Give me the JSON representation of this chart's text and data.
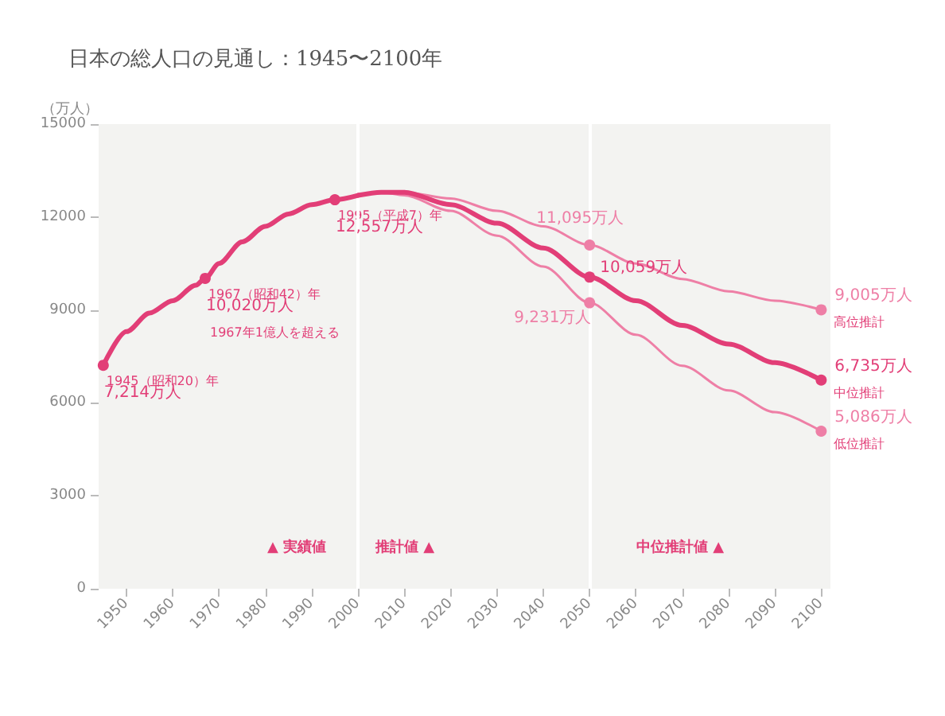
{
  "chart_data": {
    "type": "line",
    "title": "日本の総人口の見通し：1945〜2100年",
    "ylabel": "（万人）",
    "xlim": [
      1944,
      2102
    ],
    "xticks": [
      1950,
      1960,
      1970,
      1980,
      1990,
      2000,
      2010,
      2020,
      2030,
      2040,
      2050,
      2060,
      2070,
      2080,
      2090,
      2100
    ],
    "ylim": [
      0,
      15000
    ],
    "yticks": [
      0,
      3000,
      6000,
      9000,
      12000,
      15000
    ],
    "grid": false,
    "line_style": "solid",
    "ref_lines": [
      {
        "axis": "x",
        "value": 2000,
        "color": "#ffffff"
      },
      {
        "axis": "x",
        "value": 2050,
        "color": "#ffffff"
      }
    ],
    "series": [
      {
        "color": "#e23e77",
        "x": [
          1945,
          1950,
          1955,
          1960,
          1965,
          1967,
          1970,
          1975,
          1980,
          1985,
          1990,
          1995,
          2000
        ],
        "values": [
          7214,
          8300,
          8900,
          9300,
          9800,
          10020,
          10500,
          11200,
          11700,
          12100,
          12400,
          12557,
          12700
        ],
        "value_labels": [
          "7,214万人",
          null,
          null,
          null,
          null,
          "10,020万人",
          null,
          null,
          null,
          null,
          null,
          "12,557万人",
          null
        ]
      },
      {
        "color": "#e23e77",
        "x": [
          2000,
          2005,
          2010,
          2020,
          2030,
          2040,
          2050,
          2060,
          2070,
          2080,
          2090,
          2100
        ],
        "values": [
          12700,
          12800,
          12800,
          12400,
          11800,
          11000,
          10059,
          9300,
          8500,
          7900,
          7300,
          6735
        ],
        "value_labels": [
          null,
          null,
          null,
          null,
          null,
          null,
          "10,059万人",
          null,
          null,
          null,
          null,
          "6,735万人"
        ]
      },
      {
        "color": "#ee7fa6",
        "x": [
          2000,
          2005,
          2010,
          2020,
          2030,
          2040,
          2050,
          2060,
          2070,
          2080,
          2090,
          2100
        ],
        "values": [
          12700,
          12800,
          12800,
          12600,
          12200,
          11700,
          11095,
          10500,
          10000,
          9600,
          9300,
          9005
        ],
        "value_labels": [
          null,
          null,
          null,
          null,
          null,
          null,
          "11,095万人",
          null,
          null,
          null,
          null,
          "9,005万人"
        ]
      },
      {
        "color": "#ee7fa6",
        "x": [
          2000,
          2005,
          2010,
          2020,
          2030,
          2040,
          2050,
          2060,
          2070,
          2080,
          2090,
          2100
        ],
        "values": [
          12700,
          12800,
          12700,
          12200,
          11400,
          10400,
          9231,
          8200,
          7200,
          6400,
          5700,
          5086
        ],
        "value_labels": [
          null,
          null,
          null,
          null,
          null,
          null,
          "9,231万人",
          null,
          null,
          null,
          null,
          "5,086万人"
        ]
      }
    ],
    "annotations": [
      {
        "text": "1945（昭和20）年",
        "x": 1945,
        "y": 7214
      },
      {
        "text": "1967（昭和42）年",
        "x": 1967,
        "y": 10020
      },
      {
        "text": "1995（平成7）年",
        "x": 1995,
        "y": 12557
      },
      {
        "text": "高位推計",
        "x": 2100,
        "y": 9005
      },
      {
        "text": "中位推計",
        "x": 2100,
        "y": 6735
      },
      {
        "text": "低位推計",
        "x": 2100,
        "y": 5086
      },
      "1967年1億人を超える",
      "▲ 実績値",
      "推計値 ▲",
      "中位推計値 ▲"
    ]
  }
}
